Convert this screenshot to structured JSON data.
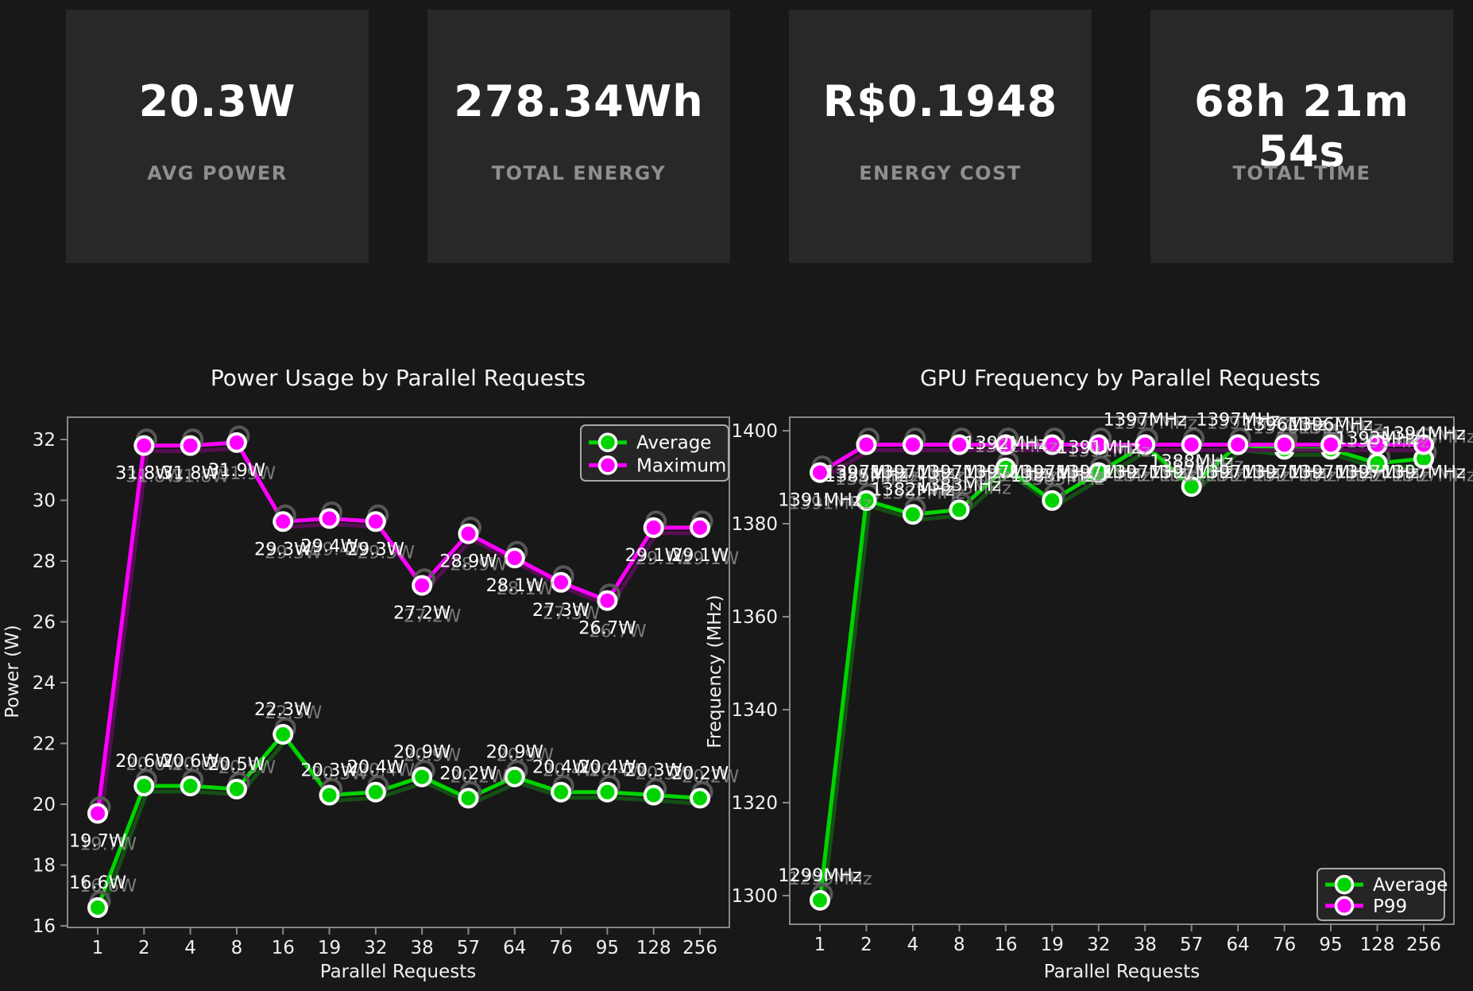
{
  "cards": [
    {
      "value": "20.3W",
      "label": "AVG POWER"
    },
    {
      "value": "278.34Wh",
      "label": "TOTAL ENERGY"
    },
    {
      "value": "R$0.1948",
      "label": "ENERGY COST"
    },
    {
      "value": "68h 21m 54s",
      "label": "TOTAL TIME"
    }
  ],
  "colors": {
    "background": "#181818",
    "card_background": "#282828",
    "card_label": "#8f8f8f",
    "green_series": "#00d400",
    "magenta_series": "#ff00ff",
    "axis": "#878787",
    "text": "#f0f0f0",
    "label_shadow": "#9a9a9a"
  },
  "chart_data": [
    {
      "type": "line",
      "title": "Power Usage by Parallel Requests",
      "xlabel": "Parallel Requests",
      "ylabel": "Power (W)",
      "categories": [
        "1",
        "2",
        "4",
        "8",
        "16",
        "19",
        "32",
        "38",
        "57",
        "64",
        "76",
        "95",
        "128",
        "256"
      ],
      "yticks": [
        16,
        18,
        20,
        22,
        24,
        26,
        28,
        30,
        32
      ],
      "ylim": [
        16,
        32.7
      ],
      "grid": false,
      "legend_position": "top-right",
      "series": [
        {
          "name": "Average",
          "color": "#00d400",
          "values": [
            16.6,
            20.6,
            20.6,
            20.5,
            22.3,
            20.3,
            20.4,
            20.9,
            20.2,
            20.9,
            20.4,
            20.4,
            20.3,
            20.2
          ],
          "labels": [
            "16.6W",
            "20.6W",
            "20.6W",
            "20.5W",
            "22.3W",
            "20.3W",
            "20.4W",
            "20.9W",
            "20.2W",
            "20.9W",
            "20.4W",
            "20.4W",
            "20.3W",
            "20.2W"
          ]
        },
        {
          "name": "Maximum",
          "color": "#ff00ff",
          "values": [
            19.7,
            31.8,
            31.8,
            31.9,
            29.3,
            29.4,
            29.3,
            27.2,
            28.9,
            28.1,
            27.3,
            26.7,
            29.1,
            29.1
          ],
          "labels": [
            "19.7W",
            "31.8W",
            "31.8W",
            "31.9W",
            "29.3W",
            "29.4W",
            "29.3W",
            "27.2W",
            "28.9W",
            "28.1W",
            "27.3W",
            "26.7W",
            "29.1W",
            "29.1W"
          ]
        }
      ]
    },
    {
      "type": "line",
      "title": "GPU Frequency by Parallel Requests",
      "xlabel": "Parallel Requests",
      "ylabel": "Frequency (MHz)",
      "categories": [
        "1",
        "2",
        "4",
        "8",
        "16",
        "19",
        "32",
        "38",
        "57",
        "64",
        "76",
        "95",
        "128",
        "256"
      ],
      "yticks": [
        1300,
        1320,
        1340,
        1360,
        1380,
        1400
      ],
      "ylim": [
        1294,
        1403
      ],
      "grid": false,
      "legend_position": "bottom-right",
      "series": [
        {
          "name": "Average",
          "color": "#00d400",
          "values": [
            1299,
            1385,
            1382,
            1383,
            1392,
            1385,
            1391,
            1397,
            1388,
            1397,
            1396,
            1396,
            1393,
            1394
          ],
          "labels": [
            "1299MHz",
            "1385MHz",
            "1382MHz",
            "1383MHz",
            "1392MHz",
            "1385MHz",
            "1391MHz",
            "1397MHz",
            "1388MHz",
            "1397MHz",
            "1396MHz",
            "1396MHz",
            "1393MHz",
            "1394MHz"
          ]
        },
        {
          "name": "P99",
          "color": "#ff00ff",
          "values": [
            1391,
            1397,
            1397,
            1397,
            1397,
            1397,
            1397,
            1397,
            1397,
            1397,
            1397,
            1397,
            1397,
            1397
          ],
          "labels": [
            "1391MHz",
            "1397MHz",
            "1397MHz",
            "1397MHz",
            "1397MHz",
            "1397MHz",
            "1397MHz",
            "1397MHz",
            "1397MHz",
            "1397MHz",
            "1397MHz",
            "1397MHz",
            "1397MHz",
            "1397MHz"
          ]
        }
      ]
    }
  ]
}
